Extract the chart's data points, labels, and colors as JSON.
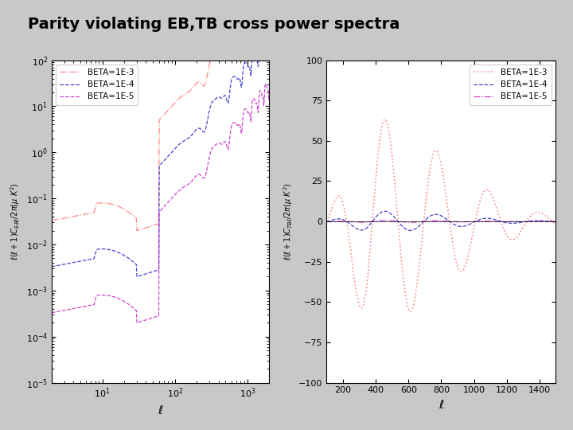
{
  "title": "Parity violating EB,TB cross power spectra",
  "title_bg": "#66ff99",
  "title_fontsize": 14,
  "fig_bg": "#c8c8c8",
  "left_ylabel": "$\\ell(\\ell+1)C_{EB\\ell}/2\\pi(\\mu\\ K^2)$",
  "right_ylabel": "$\\ell(\\ell+1)C_{TB\\ell}/2\\pi(\\mu\\ K^2)$",
  "xlabel": "$\\ell$",
  "left_xlim": [
    2,
    2000
  ],
  "left_ylim": [
    1e-05,
    100.0
  ],
  "right_xlim": [
    100,
    1500
  ],
  "right_ylim": [
    -100,
    100
  ],
  "colors": {
    "beta1e-3": "#ff8888",
    "beta1e-4": "#4444cc",
    "beta1e-5": "#cc44cc"
  },
  "legend_labels": [
    "BETA=1E-3",
    "BETA=1E-4",
    "BETA=1E-5"
  ]
}
